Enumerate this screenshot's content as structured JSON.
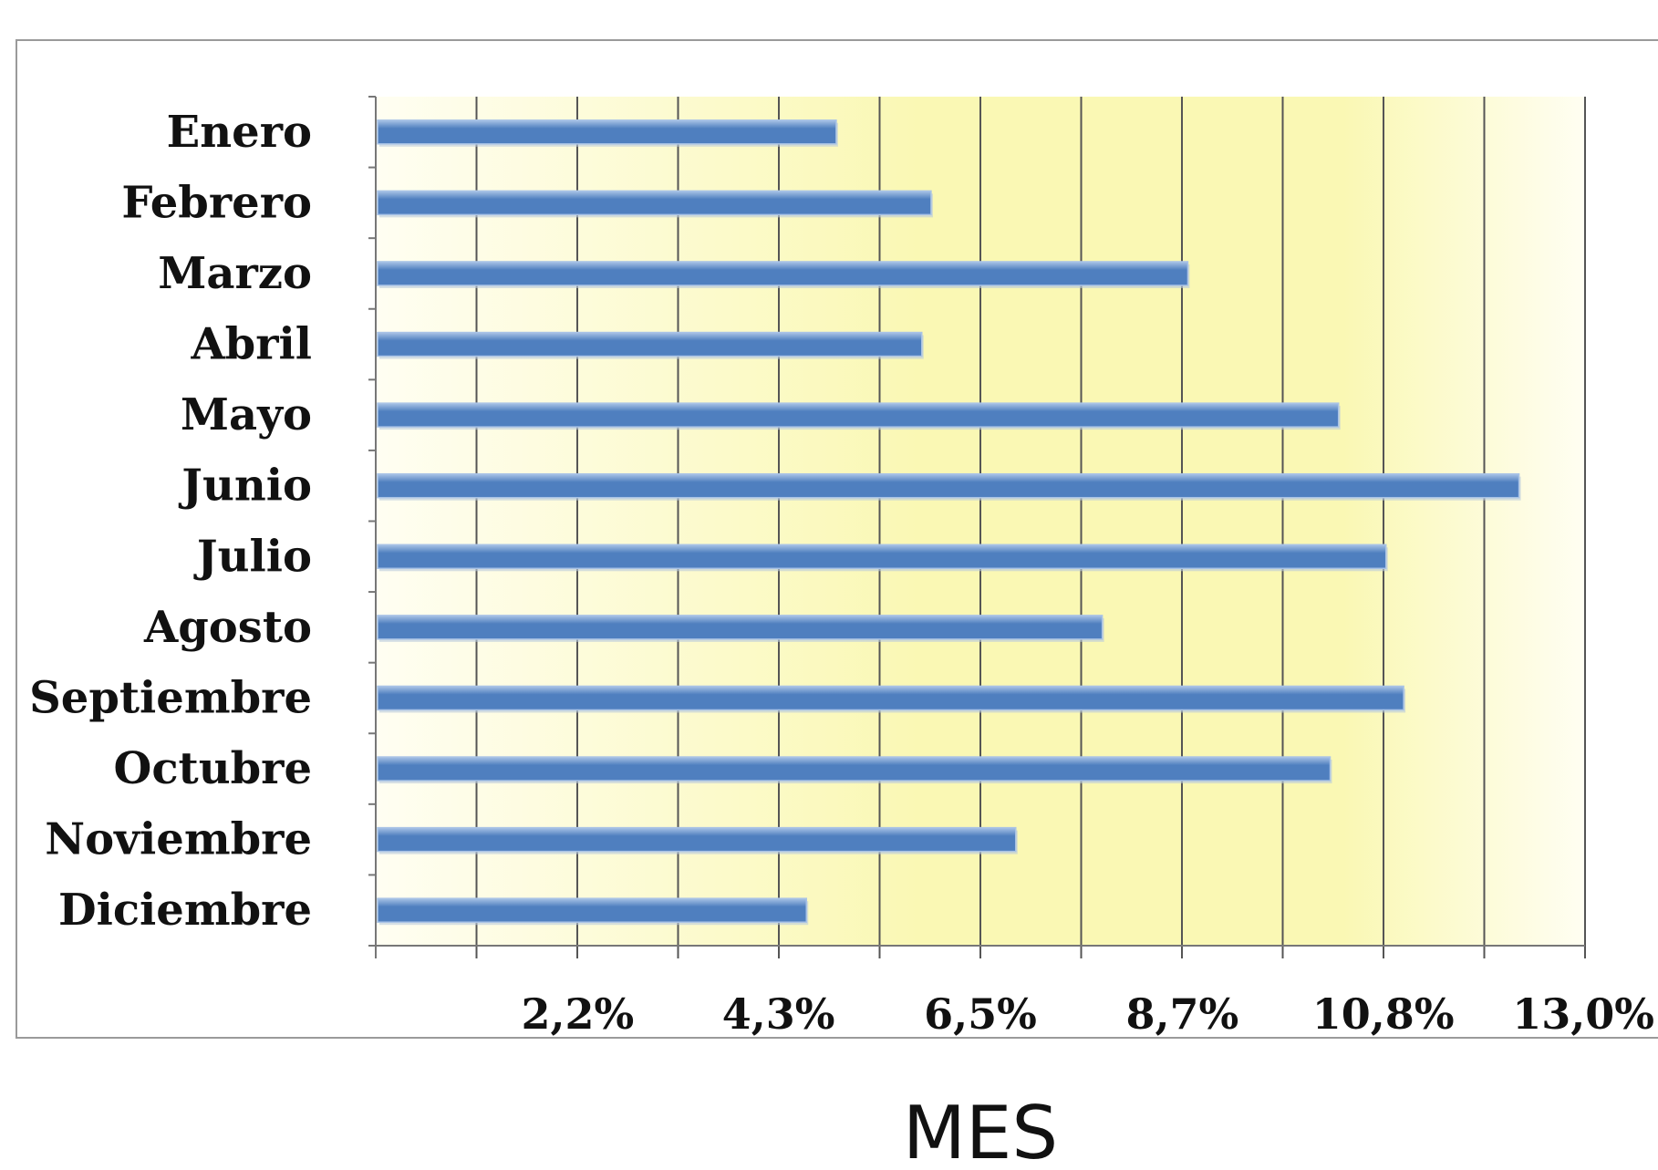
{
  "chart_data": {
    "type": "bar",
    "orientation": "horizontal",
    "categories": [
      "Enero",
      "Febrero",
      "Marzo",
      "Abril",
      "Mayo",
      "Junio",
      "Julio",
      "Agosto",
      "Septiembre",
      "Octubre",
      "Noviembre",
      "Diciembre"
    ],
    "values": [
      4.95,
      5.97,
      8.73,
      5.87,
      10.35,
      12.29,
      10.86,
      7.81,
      11.05,
      10.26,
      6.88,
      4.63
    ],
    "value_unit": "%",
    "xlabel": "MES",
    "ylabel": "",
    "xlim": [
      0,
      13.0
    ],
    "x_ticks": [
      {
        "value": 2.17,
        "label": "2,2%"
      },
      {
        "value": 4.33,
        "label": "4,3%"
      },
      {
        "value": 6.5,
        "label": "6,5%"
      },
      {
        "value": 8.67,
        "label": "8,7%"
      },
      {
        "value": 10.83,
        "label": "10,8%"
      },
      {
        "value": 13.0,
        "label": "13,0%"
      }
    ],
    "minor_gridlines_per_tick": 2,
    "grid": true,
    "colors": {
      "bar": "#4f7fbf",
      "bar_highlight": "#a9c3e6",
      "plot_background": "#faf8b4",
      "plot_background_edge": "#fffef2",
      "gridline": "#555555"
    }
  }
}
